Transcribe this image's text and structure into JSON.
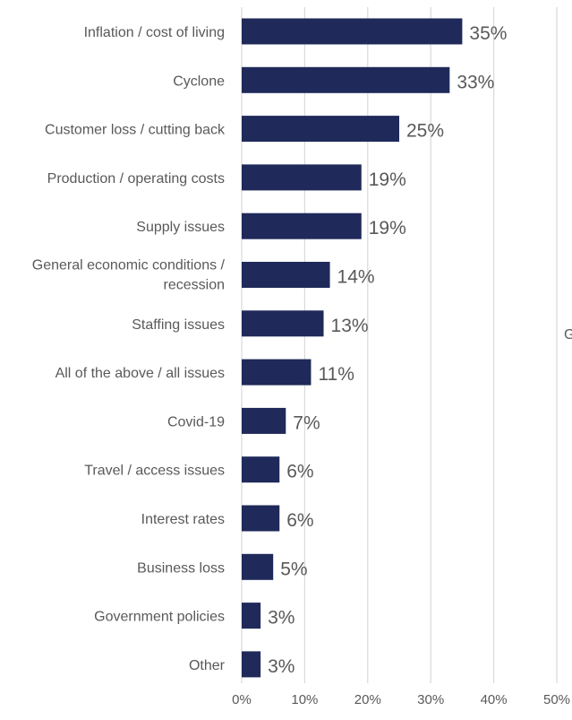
{
  "chart_data": {
    "type": "bar",
    "orientation": "horizontal",
    "categories": [
      "Inflation / cost of living",
      "Cyclone",
      "Customer loss / cutting back",
      "Production / operating costs",
      "Supply issues",
      "General economic conditions / recession",
      "Staffing issues",
      "All of the above / all issues",
      "Covid-19",
      "Travel / access issues",
      "Interest rates",
      "Business loss",
      "Government policies",
      "Other"
    ],
    "values": [
      35,
      33,
      25,
      19,
      19,
      14,
      13,
      11,
      7,
      6,
      6,
      5,
      3,
      3
    ],
    "value_labels": [
      "35%",
      "33%",
      "25%",
      "19%",
      "19%",
      "14%",
      "13%",
      "11%",
      "7%",
      "6%",
      "6%",
      "5%",
      "3%",
      "3%"
    ],
    "xlim": [
      0,
      50
    ],
    "x_ticks": [
      "0%",
      "10%",
      "20%",
      "30%",
      "40%",
      "50%"
    ],
    "grid": true,
    "bar_color": "#1f2a5a",
    "cut_off_edge_text": "G"
  }
}
